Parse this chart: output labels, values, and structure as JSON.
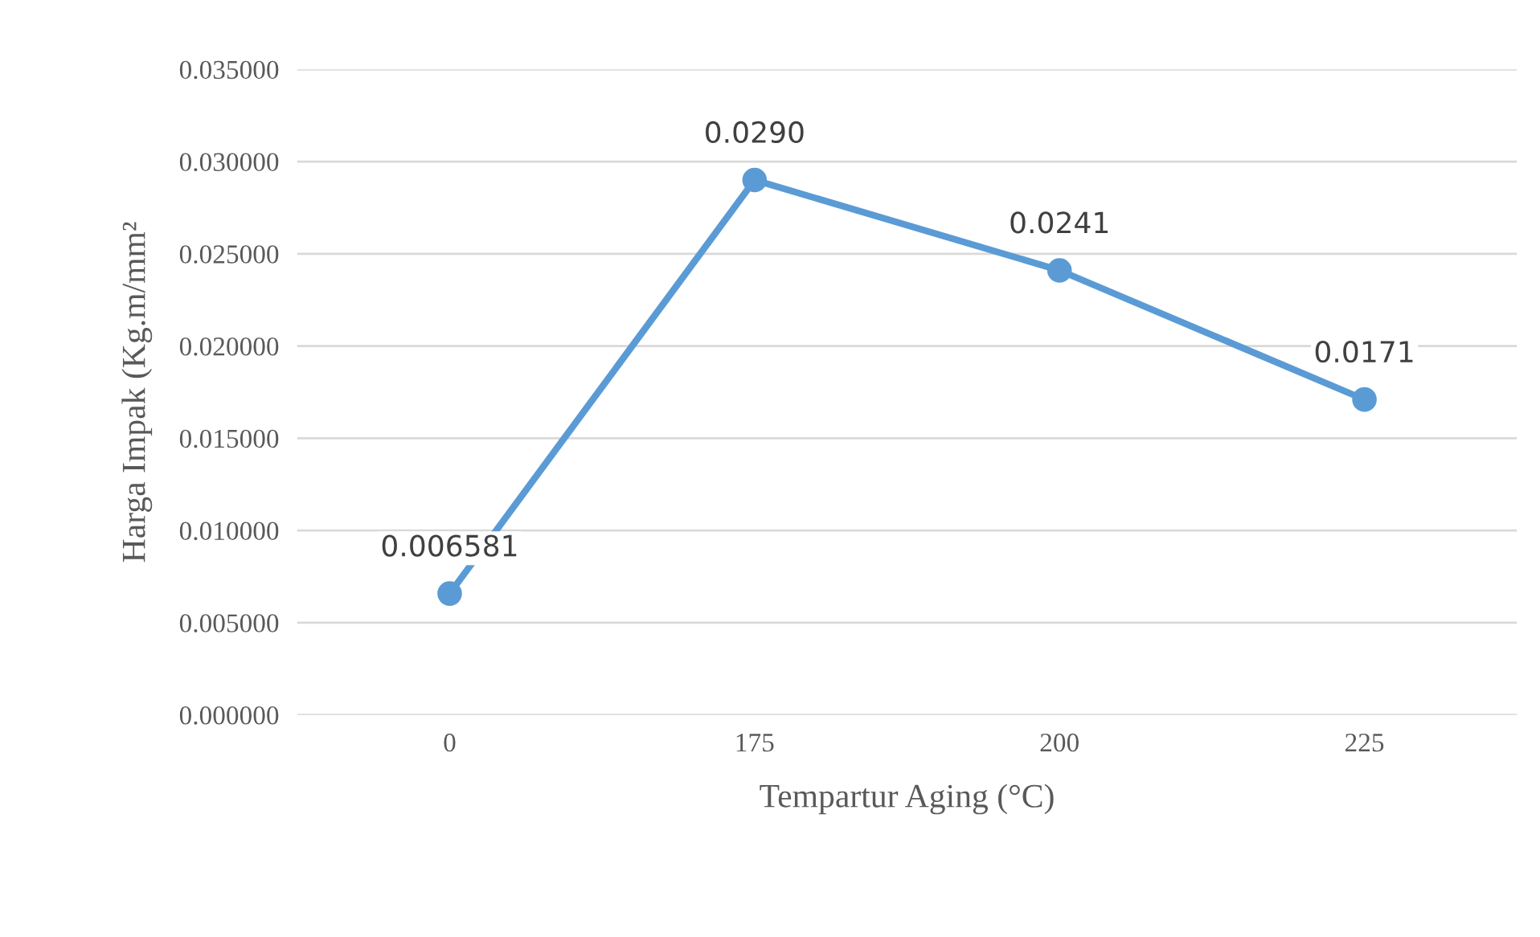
{
  "chart_data": {
    "type": "line",
    "xlabel": "Tempartur Aging (°C)",
    "ylabel": "Harga Impak (Kg.m/mm²",
    "categories": [
      "0",
      "175",
      "200",
      "225"
    ],
    "series": [
      {
        "color": "#5b9bd5",
        "values": [
          0.006581,
          0.029,
          0.0241,
          0.0171
        ],
        "value_labels": [
          "0.006581",
          "0.0290",
          "0.0241",
          "0.0171"
        ]
      }
    ],
    "ylim": [
      0,
      0.035
    ],
    "yticks": [
      {
        "value": 0,
        "label": "0.000000"
      },
      {
        "value": 0.005,
        "label": "0.005000"
      },
      {
        "value": 0.01,
        "label": "0.010000"
      },
      {
        "value": 0.015,
        "label": "0.015000"
      },
      {
        "value": 0.02,
        "label": "0.020000"
      },
      {
        "value": 0.025,
        "label": "0.025000"
      },
      {
        "value": 0.03,
        "label": "0.030000"
      },
      {
        "value": 0.035,
        "label": "0.035000"
      }
    ],
    "grid": "y",
    "marker": "circle",
    "line_style": "solid"
  }
}
